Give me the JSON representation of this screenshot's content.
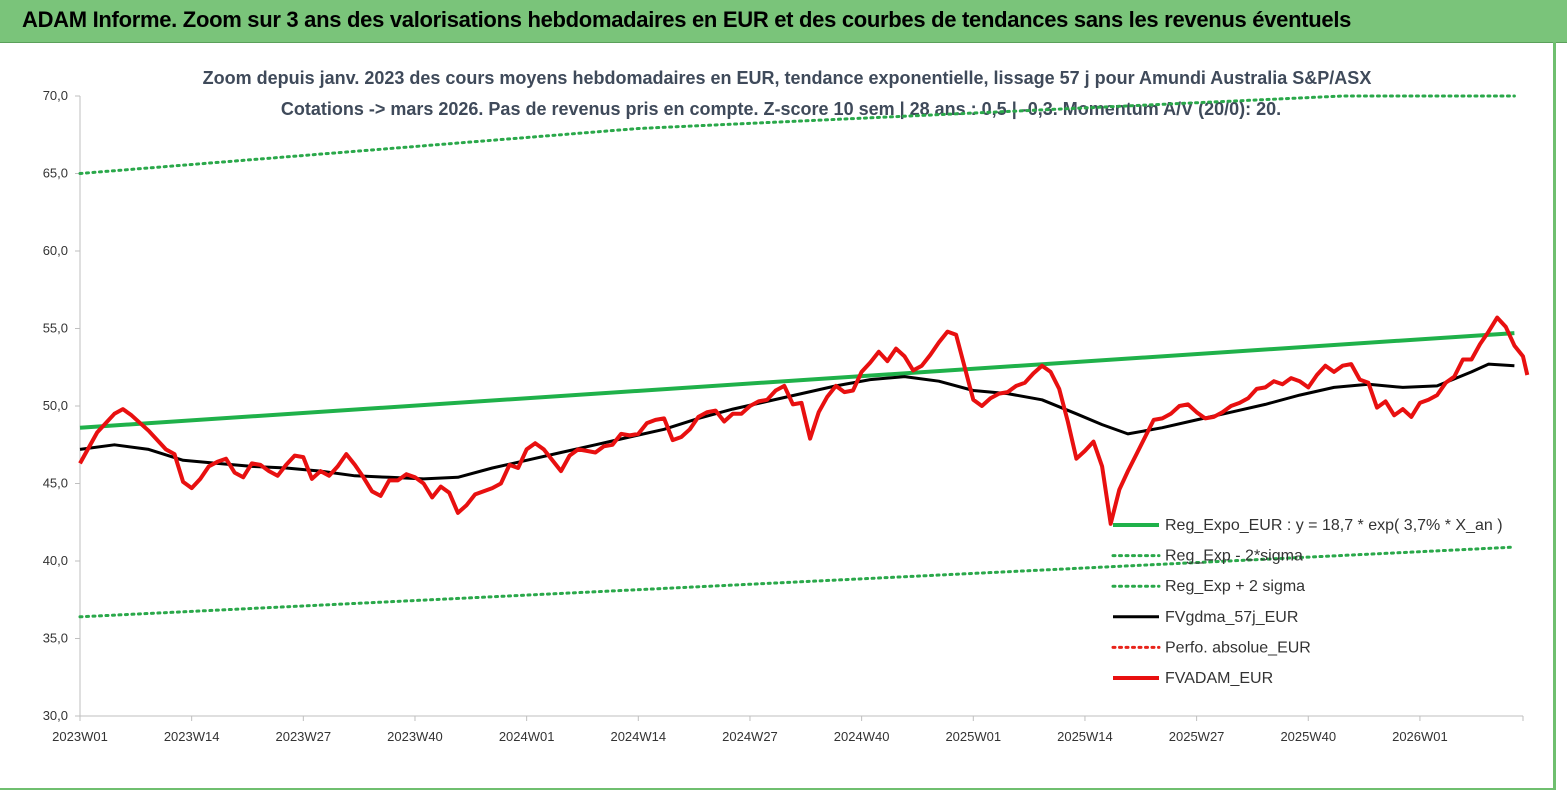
{
  "banner": {
    "title": "ADAM Informe. Zoom sur 3 ans des valorisations hebdomadaires en EUR et des courbes de tendances sans les revenus éventuels"
  },
  "colors": {
    "banner_bg": "#7ac47a",
    "trend": "#1fb14a",
    "band": "#2aa84a",
    "moving_avg": "#000000",
    "perf_abs": "#e8231a",
    "price": "#e81010"
  },
  "chart_data": {
    "type": "line",
    "title": "Zoom depuis janv. 2023 des cours moyens hebdomadaires en EUR, tendance exponentielle, lissage 57 j pour Amundi Australia S&P/ASX",
    "subtitle": "Cotations -> mars 2026. Pas de revenus pris en compte. Z-score 10 sem | 28 ans : 0,5 | -0,3. Momentum A/V (20/0): 20.",
    "x_tick_labels": [
      "2023W01",
      "2023W14",
      "2023W27",
      "2023W40",
      "2024W01",
      "2024W14",
      "2024W27",
      "2024W40",
      "2025W01",
      "2025W14",
      "2025W27",
      "2025W40",
      "2026W01"
    ],
    "y_tick_labels": [
      "30,0",
      "35,0",
      "40,0",
      "45,0",
      "50,0",
      "55,0",
      "60,0",
      "65,0",
      "70,0"
    ],
    "ylim": [
      30,
      70
    ],
    "weeks_total": 168,
    "legend_position": "bottom-right",
    "grid": false,
    "series": [
      {
        "name": "Reg_Expo_EUR : y = 18,7 * exp( 3,7% *  X_an )",
        "style": "solid-thick",
        "color": "#1fb14a",
        "points": [
          [
            0,
            48.6
          ],
          [
            167,
            54.7
          ]
        ]
      },
      {
        "name": "Reg_Exp - 2*sigma",
        "style": "dotted",
        "color": "#2aa84a",
        "points": [
          [
            0,
            36.4
          ],
          [
            167,
            40.9
          ]
        ]
      },
      {
        "name": "Reg_Exp + 2 sigma",
        "style": "dotted",
        "color": "#2aa84a",
        "points": [
          [
            0,
            65.0
          ],
          [
            65,
            67.9
          ],
          [
            147,
            70.0
          ],
          [
            167,
            70.0
          ]
        ]
      },
      {
        "name": "FVgdma_57j_EUR",
        "style": "solid",
        "color": "#000000",
        "points": [
          [
            0,
            47.2
          ],
          [
            4,
            47.5
          ],
          [
            8,
            47.2
          ],
          [
            12,
            46.5
          ],
          [
            16,
            46.3
          ],
          [
            20,
            46.1
          ],
          [
            24,
            46.0
          ],
          [
            28,
            45.8
          ],
          [
            32,
            45.5
          ],
          [
            36,
            45.4
          ],
          [
            40,
            45.3
          ],
          [
            44,
            45.4
          ],
          [
            48,
            46.0
          ],
          [
            52,
            46.5
          ],
          [
            56,
            47.0
          ],
          [
            60,
            47.5
          ],
          [
            64,
            48.0
          ],
          [
            68,
            48.5
          ],
          [
            72,
            49.2
          ],
          [
            76,
            49.8
          ],
          [
            80,
            50.3
          ],
          [
            84,
            50.8
          ],
          [
            88,
            51.3
          ],
          [
            92,
            51.7
          ],
          [
            96,
            51.9
          ],
          [
            100,
            51.6
          ],
          [
            104,
            51.0
          ],
          [
            108,
            50.8
          ],
          [
            112,
            50.4
          ],
          [
            116,
            49.5
          ],
          [
            119,
            48.8
          ],
          [
            122,
            48.2
          ],
          [
            126,
            48.6
          ],
          [
            130,
            49.1
          ],
          [
            134,
            49.6
          ],
          [
            138,
            50.1
          ],
          [
            142,
            50.7
          ],
          [
            146,
            51.2
          ],
          [
            150,
            51.4
          ],
          [
            154,
            51.2
          ],
          [
            158,
            51.3
          ],
          [
            162,
            52.2
          ],
          [
            164,
            52.7
          ],
          [
            167,
            52.6
          ]
        ]
      },
      {
        "name": "Perfo. absolue_EUR",
        "style": "dotted",
        "color": "#e8231a",
        "points": []
      },
      {
        "name": "FVADAM_EUR",
        "style": "solid-thick",
        "color": "#e81010",
        "points": [
          [
            0,
            46.3
          ],
          [
            2,
            48.3
          ],
          [
            4,
            49.5
          ],
          [
            5,
            49.8
          ],
          [
            6,
            49.4
          ],
          [
            8,
            48.4
          ],
          [
            10,
            47.2
          ],
          [
            11,
            46.9
          ],
          [
            12,
            45.1
          ],
          [
            13,
            44.7
          ],
          [
            14,
            45.3
          ],
          [
            15,
            46.1
          ],
          [
            16,
            46.4
          ],
          [
            17,
            46.6
          ],
          [
            18,
            45.7
          ],
          [
            19,
            45.4
          ],
          [
            20,
            46.3
          ],
          [
            21,
            46.2
          ],
          [
            22,
            45.8
          ],
          [
            23,
            45.5
          ],
          [
            24,
            46.2
          ],
          [
            25,
            46.8
          ],
          [
            26,
            46.7
          ],
          [
            27,
            45.3
          ],
          [
            28,
            45.8
          ],
          [
            29,
            45.5
          ],
          [
            30,
            46.1
          ],
          [
            31,
            46.9
          ],
          [
            32,
            46.2
          ],
          [
            33,
            45.4
          ],
          [
            34,
            44.5
          ],
          [
            35,
            44.2
          ],
          [
            36,
            45.2
          ],
          [
            37,
            45.2
          ],
          [
            38,
            45.6
          ],
          [
            39,
            45.4
          ],
          [
            40,
            45.0
          ],
          [
            41,
            44.1
          ],
          [
            42,
            44.8
          ],
          [
            43,
            44.4
          ],
          [
            44,
            43.1
          ],
          [
            45,
            43.6
          ],
          [
            46,
            44.3
          ],
          [
            48,
            44.7
          ],
          [
            49,
            45.0
          ],
          [
            50,
            46.2
          ],
          [
            51,
            46.0
          ],
          [
            52,
            47.2
          ],
          [
            53,
            47.6
          ],
          [
            54,
            47.2
          ],
          [
            55,
            46.5
          ],
          [
            56,
            45.8
          ],
          [
            57,
            46.8
          ],
          [
            58,
            47.2
          ],
          [
            59,
            47.1
          ],
          [
            60,
            47.0
          ],
          [
            61,
            47.4
          ],
          [
            62,
            47.5
          ],
          [
            63,
            48.2
          ],
          [
            64,
            48.1
          ],
          [
            65,
            48.2
          ],
          [
            66,
            48.9
          ],
          [
            67,
            49.1
          ],
          [
            68,
            49.2
          ],
          [
            69,
            47.8
          ],
          [
            70,
            48.0
          ],
          [
            71,
            48.5
          ],
          [
            72,
            49.3
          ],
          [
            73,
            49.6
          ],
          [
            74,
            49.7
          ],
          [
            75,
            49.0
          ],
          [
            76,
            49.5
          ],
          [
            77,
            49.5
          ],
          [
            78,
            50.0
          ],
          [
            79,
            50.3
          ],
          [
            80,
            50.4
          ],
          [
            81,
            51.0
          ],
          [
            82,
            51.3
          ],
          [
            83,
            50.1
          ],
          [
            84,
            50.2
          ],
          [
            85,
            47.9
          ],
          [
            86,
            49.6
          ],
          [
            87,
            50.6
          ],
          [
            88,
            51.3
          ],
          [
            89,
            50.9
          ],
          [
            90,
            51.0
          ],
          [
            91,
            52.2
          ],
          [
            92,
            52.8
          ],
          [
            93,
            53.5
          ],
          [
            94,
            52.9
          ],
          [
            95,
            53.7
          ],
          [
            96,
            53.2
          ],
          [
            97,
            52.3
          ],
          [
            98,
            52.6
          ],
          [
            99,
            53.3
          ],
          [
            100,
            54.1
          ],
          [
            101,
            54.8
          ],
          [
            102,
            54.6
          ],
          [
            103,
            52.5
          ],
          [
            104,
            50.4
          ],
          [
            105,
            50.0
          ],
          [
            106,
            50.5
          ],
          [
            107,
            50.8
          ],
          [
            108,
            50.9
          ],
          [
            109,
            51.3
          ],
          [
            110,
            51.5
          ],
          [
            111,
            52.1
          ],
          [
            112,
            52.6
          ],
          [
            113,
            52.2
          ],
          [
            114,
            51.1
          ],
          [
            115,
            49.0
          ],
          [
            116,
            46.6
          ],
          [
            117,
            47.1
          ],
          [
            118,
            47.7
          ],
          [
            119,
            46.1
          ],
          [
            120,
            42.4
          ],
          [
            121,
            44.6
          ],
          [
            122,
            45.8
          ],
          [
            123,
            46.9
          ],
          [
            124,
            48.0
          ],
          [
            125,
            49.1
          ],
          [
            126,
            49.2
          ],
          [
            127,
            49.5
          ],
          [
            128,
            50.0
          ],
          [
            129,
            50.1
          ],
          [
            130,
            49.6
          ],
          [
            131,
            49.2
          ],
          [
            132,
            49.3
          ],
          [
            133,
            49.6
          ],
          [
            134,
            50.0
          ],
          [
            135,
            50.2
          ],
          [
            136,
            50.5
          ],
          [
            137,
            51.1
          ],
          [
            138,
            51.2
          ],
          [
            139,
            51.6
          ],
          [
            140,
            51.4
          ],
          [
            141,
            51.8
          ],
          [
            142,
            51.6
          ],
          [
            143,
            51.2
          ],
          [
            144,
            52.0
          ],
          [
            145,
            52.6
          ],
          [
            146,
            52.2
          ],
          [
            147,
            52.6
          ],
          [
            148,
            52.7
          ],
          [
            149,
            51.7
          ],
          [
            150,
            51.5
          ],
          [
            151,
            49.9
          ],
          [
            152,
            50.3
          ],
          [
            153,
            49.4
          ],
          [
            154,
            49.8
          ],
          [
            155,
            49.3
          ],
          [
            156,
            50.2
          ],
          [
            157,
            50.4
          ],
          [
            158,
            50.7
          ],
          [
            159,
            51.5
          ],
          [
            160,
            51.9
          ],
          [
            161,
            53.0
          ],
          [
            162,
            53.0
          ],
          [
            163,
            54.0
          ],
          [
            164,
            54.8
          ],
          [
            165,
            55.7
          ],
          [
            166,
            55.1
          ],
          [
            167,
            53.9
          ],
          [
            168,
            53.2
          ],
          [
            168.5,
            52.0
          ]
        ]
      }
    ]
  }
}
